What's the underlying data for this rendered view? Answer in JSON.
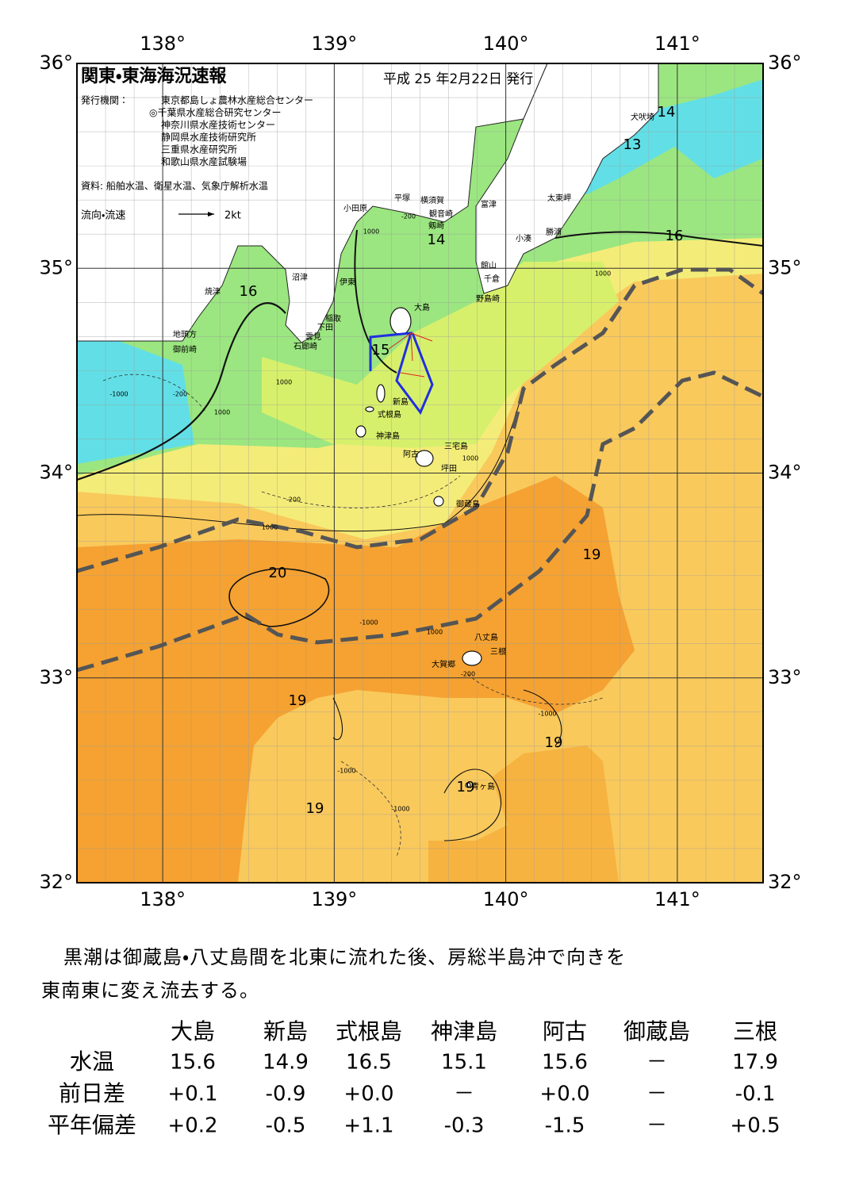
{
  "header": {
    "title": "関東・東海海況速報",
    "date": "平成 25 年2月22日 発行",
    "issuer_label": "発行機関：",
    "issuers": [
      "東京都島しょ農林水産総合センター",
      "◎千葉県水産総合研究センター",
      "神奈川県水産技術センター",
      "静岡県水産技術研究所",
      "三重県水産研究所",
      "和歌山県水産試験場"
    ],
    "source": "資料: 船舶水温、衛星水温、気象庁解析水温",
    "legend_label": "流向・流速",
    "legend_speed": "2kt"
  },
  "map": {
    "lon_lim": [
      137.5,
      141.5
    ],
    "lat_lim": [
      32,
      36
    ],
    "lon_ticks": [
      {
        "value": 138,
        "label": "138°"
      },
      {
        "value": 139,
        "label": "139°"
      },
      {
        "value": 140,
        "label": "140°"
      },
      {
        "value": 141,
        "label": "141°"
      }
    ],
    "lat_ticks": [
      {
        "value": 36,
        "label": "36°"
      },
      {
        "value": 35,
        "label": "35°"
      },
      {
        "value": 34,
        "label": "34°"
      },
      {
        "value": 33,
        "label": "33°"
      },
      {
        "value": 32,
        "label": "32°"
      }
    ],
    "place_names": [
      "犬吠埼",
      "太東岬",
      "勝浦",
      "小湊",
      "富津",
      "観音崎",
      "横須賀",
      "平塚",
      "小田原",
      "剱崎",
      "館山",
      "千倉",
      "野島崎",
      "大島",
      "伊東",
      "沼津",
      "稲取",
      "下田",
      "雲見",
      "石廊崎",
      "焼津",
      "地頭方",
      "御前崎",
      "新島",
      "式根島",
      "神津島",
      "三宅島",
      "阿古",
      "坪田",
      "御蔵島",
      "八丈島",
      "三根",
      "大賀郷",
      "青ヶ島"
    ],
    "isotherm_labels": [
      14,
      13,
      14,
      16,
      16,
      15,
      20,
      19,
      19,
      19,
      19,
      19
    ],
    "isobath_labels": [
      "-200",
      "1000",
      "-1000",
      "-200",
      "1000",
      "1000",
      "-1000",
      "1000",
      "-200",
      "-1000",
      "-1000",
      "-1000",
      "-200",
      "1000",
      "1000",
      "1000"
    ]
  },
  "summary": [
    "黒潮は御蔵島・八丈島間を北東に流れた後、房総半島沖で向きを",
    "東南東に変え流去する。"
  ],
  "table": {
    "columns": [
      "大島",
      "新島",
      "式根島",
      "神津島",
      "阿古",
      "御蔵島",
      "三根"
    ],
    "rows": [
      {
        "label": "水温",
        "values": [
          "15.6",
          "14.9",
          "16.5",
          "15.1",
          "15.6",
          "－",
          "17.9"
        ]
      },
      {
        "label": "前日差",
        "values": [
          "+0.1",
          "-0.9",
          "+0.0",
          "－",
          "+0.0",
          "－",
          "-0.1"
        ]
      },
      {
        "label": "平年偏差",
        "values": [
          "+0.2",
          "-0.5",
          "+1.1",
          "-0.3",
          "-1.5",
          "－",
          "+0.5"
        ]
      }
    ]
  }
}
